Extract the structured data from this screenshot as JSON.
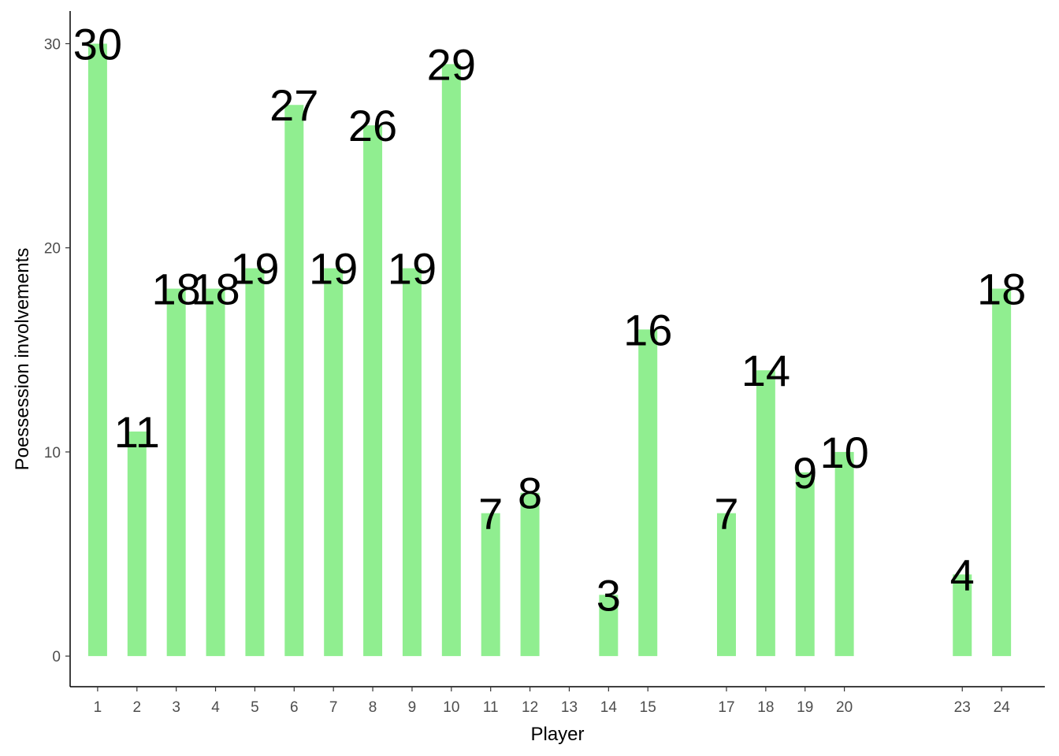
{
  "chart_data": {
    "type": "bar",
    "title": "",
    "xlabel": "Player",
    "ylabel": "Poessession involvements",
    "x_ticks": [
      "1",
      "2",
      "3",
      "4",
      "5",
      "6",
      "7",
      "8",
      "9",
      "10",
      "11",
      "12",
      "13",
      "14",
      "15",
      "17",
      "18",
      "19",
      "20",
      "23",
      "24"
    ],
    "bars": [
      {
        "player": 1,
        "value": 30
      },
      {
        "player": 2,
        "value": 11
      },
      {
        "player": 3,
        "value": 18
      },
      {
        "player": 4,
        "value": 18
      },
      {
        "player": 5,
        "value": 19
      },
      {
        "player": 6,
        "value": 27
      },
      {
        "player": 7,
        "value": 19
      },
      {
        "player": 8,
        "value": 26
      },
      {
        "player": 9,
        "value": 19
      },
      {
        "player": 10,
        "value": 29
      },
      {
        "player": 11,
        "value": 7
      },
      {
        "player": 12,
        "value": 8
      },
      {
        "player": 14,
        "value": 3
      },
      {
        "player": 15,
        "value": 16
      },
      {
        "player": 17,
        "value": 7
      },
      {
        "player": 18,
        "value": 14
      },
      {
        "player": 19,
        "value": 9
      },
      {
        "player": 20,
        "value": 10
      },
      {
        "player": 23,
        "value": 4
      },
      {
        "player": 24,
        "value": 18
      }
    ],
    "y_ticks": [
      0,
      10,
      20,
      30
    ],
    "ylim": [
      -1.5,
      31.6
    ],
    "xlim": [
      0.3,
      25.1
    ],
    "bar_color": "#90EE90",
    "grid": false,
    "legend": "none"
  }
}
